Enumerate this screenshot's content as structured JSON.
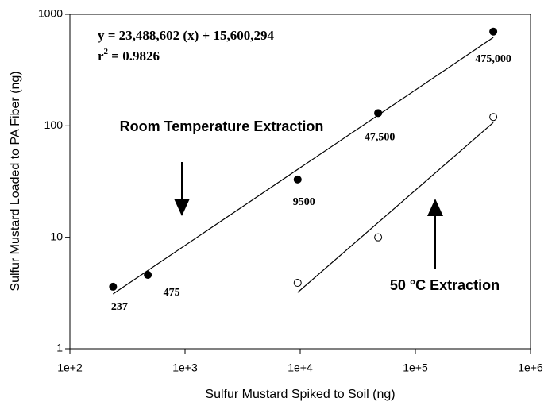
{
  "chart_data": {
    "type": "scatter",
    "x_label": "Sulfur Mustard Spiked to Soil (ng)",
    "y_label": "Sulfur Mustard Loaded to PA Fiber (ng)",
    "log_x": true,
    "log_y": true,
    "xlim": [
      100,
      1000000
    ],
    "ylim": [
      1,
      1000
    ],
    "xticks": [
      {
        "value": 100,
        "label": "1e+2"
      },
      {
        "value": 1000,
        "label": "1e+3"
      },
      {
        "value": 10000,
        "label": "1e+4"
      },
      {
        "value": 100000,
        "label": "1e+5"
      },
      {
        "value": 1000000,
        "label": "1e+6"
      }
    ],
    "yticks": [
      1,
      10,
      100,
      1000
    ],
    "series": [
      {
        "marker": "filled",
        "color": "#000000",
        "x": [
          237,
          475,
          9500,
          47500,
          475000
        ],
        "values": [
          3.6,
          4.6,
          33,
          130,
          700
        ],
        "x_labels": [
          "237",
          "475",
          "9500",
          "47,500",
          "475,000"
        ]
      },
      {
        "marker": "open",
        "color": "#000000",
        "x": [
          9500,
          47500,
          475000
        ],
        "values": [
          3.9,
          10,
          120
        ]
      }
    ],
    "fits": [
      {
        "color": "#000000",
        "x": [
          237,
          475000
        ],
        "values": [
          3.1,
          620
        ]
      },
      {
        "color": "#000000",
        "x": [
          9500,
          475000
        ],
        "values": [
          3.2,
          107
        ]
      }
    ],
    "equation": "y = 23,488,602 (x) + 15,600,294",
    "r_squared": {
      "base": "r",
      "sup": "2",
      "rest": " = 0.9826"
    },
    "annotations": [
      "Room Temperature Extraction",
      "50 °C Extraction"
    ]
  }
}
